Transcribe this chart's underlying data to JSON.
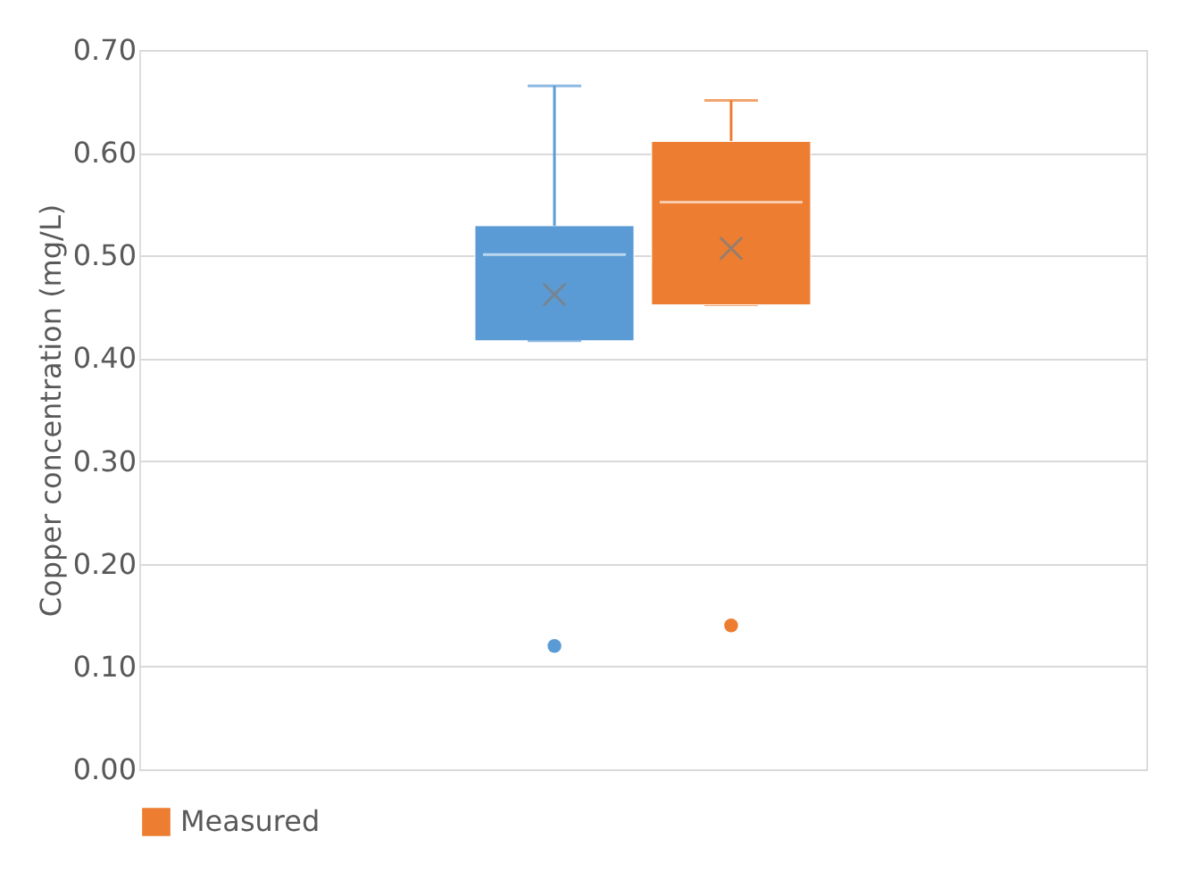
{
  "chart_data": {
    "type": "box",
    "ylabel": "Copper concentration (mg/L)",
    "categories": [
      null
    ],
    "ylim": [
      0,
      0.7
    ],
    "yticks": [
      {
        "value": 0,
        "label": "0.00"
      },
      {
        "value": 0.1,
        "label": "0.10"
      },
      {
        "value": 0.2,
        "label": "0.20"
      },
      {
        "value": 0.3,
        "label": "0.30"
      },
      {
        "value": 0.4,
        "label": "0.40"
      },
      {
        "value": 0.5,
        "label": "0.50"
      },
      {
        "value": 0.6,
        "label": "0.60"
      },
      {
        "value": 0.7,
        "label": "0.70"
      }
    ],
    "grid": "y",
    "legend": "bottom",
    "series": [
      {
        "color": "#5b9bd5",
        "boxes": [
          {
            "low": 0.417,
            "q1": 0.417,
            "median": 0.501,
            "q3": 0.529,
            "high": 0.665,
            "mean": 0.462,
            "outliers": [
              0.12
            ]
          }
        ]
      },
      {
        "name": "Measured",
        "color": "#ed7d31",
        "boxes": [
          {
            "low": 0.452,
            "q1": 0.452,
            "median": 0.552,
            "q3": 0.611,
            "high": 0.651,
            "mean": 0.507,
            "outliers": [
              0.14
            ]
          }
        ]
      }
    ]
  }
}
